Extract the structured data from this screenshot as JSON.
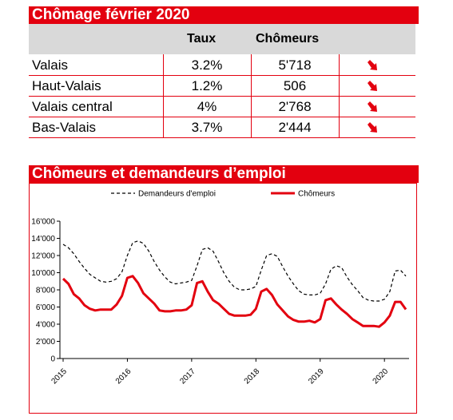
{
  "top_title": "Chômage février 2020",
  "table": {
    "headers": {
      "taux": "Taux",
      "chomeurs": "Chômeurs"
    },
    "rows": [
      {
        "name": "Valais",
        "taux": "3.2%",
        "chomeurs": "5'718",
        "trend": "down"
      },
      {
        "name": "Haut-Valais",
        "taux": "1.2%",
        "chomeurs": "506",
        "trend": "down"
      },
      {
        "name": "Valais central",
        "taux": "4%",
        "chomeurs": "2'768",
        "trend": "down"
      },
      {
        "name": "Bas-Valais",
        "taux": "3.7%",
        "chomeurs": "2'444",
        "trend": "down"
      }
    ],
    "trend_color": "#e3000f"
  },
  "chart_title": "Chômeurs et demandeurs d’emploi",
  "chart_data": {
    "type": "line",
    "legend": [
      "Demandeurs d'emploi",
      "Chômeurs"
    ],
    "legend_position": "top",
    "ylim": [
      0,
      16000
    ],
    "y_ticks": [
      "0",
      "2'000",
      "4'000",
      "6'000",
      "8'000",
      "10'000",
      "12'000",
      "14'000",
      "16'000"
    ],
    "x_ticks": [
      "2015",
      "2016",
      "2017",
      "2018",
      "2019",
      "2020"
    ],
    "x_start": "2015-01",
    "x_end": "2020-02",
    "grid": false,
    "series": [
      {
        "name": "Demandeurs d'emploi",
        "style": "dashed",
        "color": "#000000",
        "values": [
          13300,
          12900,
          12200,
          11300,
          10500,
          9800,
          9400,
          9000,
          8900,
          9000,
          9300,
          10100,
          12000,
          13500,
          13700,
          13400,
          12500,
          11300,
          10300,
          9500,
          8900,
          8700,
          8800,
          8900,
          9100,
          10800,
          12700,
          12900,
          12500,
          11300,
          10000,
          9000,
          8300,
          8000,
          8000,
          8100,
          8400,
          10300,
          12000,
          12200,
          11900,
          10700,
          9600,
          8700,
          7900,
          7500,
          7400,
          7400,
          7600,
          8700,
          10400,
          10800,
          10600,
          9500,
          8600,
          7900,
          7100,
          6800,
          6700,
          6700,
          6900,
          7800,
          10200,
          10300,
          9600
        ]
      },
      {
        "name": "Chômeurs",
        "style": "solid",
        "color": "#e3000f",
        "values": [
          9300,
          8700,
          7500,
          7000,
          6200,
          5800,
          5600,
          5700,
          5700,
          5700,
          6300,
          7300,
          9400,
          9600,
          8800,
          7600,
          7000,
          6400,
          5600,
          5500,
          5500,
          5600,
          5600,
          5700,
          6200,
          8800,
          9000,
          7800,
          6800,
          6400,
          5800,
          5200,
          5000,
          5000,
          5000,
          5100,
          5800,
          7800,
          8100,
          7400,
          6300,
          5600,
          4900,
          4500,
          4300,
          4300,
          4400,
          4200,
          4600,
          6800,
          7000,
          6300,
          5700,
          5200,
          4600,
          4200,
          3800,
          3800,
          3800,
          3700,
          4200,
          5000,
          6600,
          6600,
          5718
        ]
      }
    ]
  }
}
